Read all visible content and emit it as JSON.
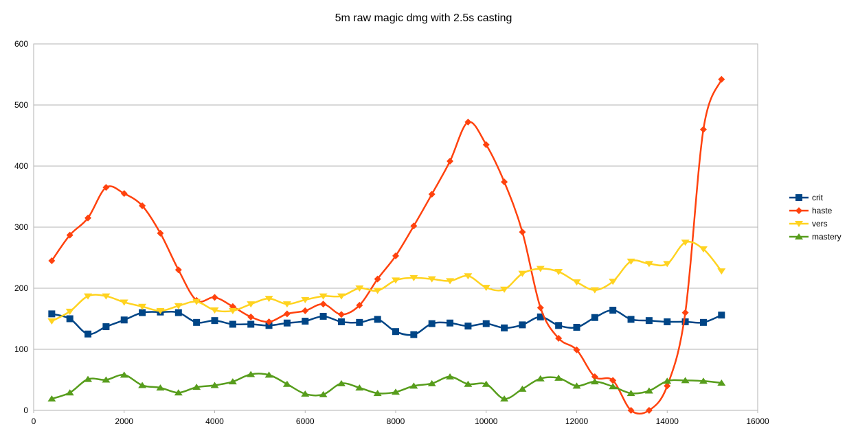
{
  "chart_data": {
    "type": "line",
    "title": "5m raw magic dmg with 2.5s casting",
    "xlabel": "",
    "ylabel": "",
    "xlim": [
      0,
      16000
    ],
    "ylim": [
      0,
      600
    ],
    "xticks": [
      "0",
      "2000",
      "4000",
      "6000",
      "8000",
      "10000",
      "12000",
      "14000",
      "16000"
    ],
    "yticks": [
      "0",
      "100",
      "200",
      "300",
      "400",
      "500",
      "600"
    ],
    "grid": "horizontal",
    "legend": "right",
    "x": [
      400,
      800,
      1200,
      1600,
      2000,
      2400,
      2800,
      3200,
      3600,
      4000,
      4400,
      4800,
      5200,
      5600,
      6000,
      6400,
      6800,
      7200,
      7600,
      8000,
      8400,
      8800,
      9200,
      9600,
      10000,
      10400,
      10800,
      11200,
      11600,
      12000,
      12400,
      12800,
      13200,
      13600,
      14000,
      14400,
      14800,
      15200
    ],
    "series": [
      {
        "name": "crit",
        "color": "#004586",
        "marker": "square",
        "values": [
          158,
          150,
          125,
          137,
          148,
          160,
          161,
          160,
          144,
          147,
          141,
          141,
          139,
          143,
          146,
          154,
          145,
          144,
          149,
          129,
          124,
          142,
          143,
          138,
          142,
          135,
          140,
          153,
          139,
          136,
          152,
          164,
          149,
          147,
          145,
          145,
          144,
          156
        ]
      },
      {
        "name": "haste",
        "color": "#ff420e",
        "marker": "diamond",
        "values": [
          245,
          287,
          315,
          365,
          355,
          335,
          290,
          230,
          180,
          185,
          170,
          153,
          145,
          158,
          163,
          174,
          157,
          172,
          215,
          253,
          302,
          354,
          408,
          472,
          435,
          374,
          292,
          168,
          118,
          99,
          55,
          49,
          0,
          0,
          40,
          160,
          460,
          542
        ]
      },
      {
        "name": "vers",
        "color": "#ffd320",
        "marker": "triangle-down",
        "values": [
          146,
          162,
          187,
          187,
          177,
          170,
          163,
          171,
          178,
          164,
          163,
          174,
          183,
          174,
          181,
          187,
          187,
          200,
          196,
          213,
          217,
          215,
          212,
          220,
          201,
          198,
          224,
          232,
          227,
          210,
          197,
          211,
          244,
          240,
          240,
          275,
          264,
          228
        ]
      },
      {
        "name": "mastery",
        "color": "#579d1c",
        "marker": "triangle-up",
        "values": [
          19,
          29,
          51,
          50,
          58,
          41,
          37,
          29,
          38,
          41,
          47,
          59,
          58,
          43,
          27,
          26,
          44,
          37,
          28,
          30,
          40,
          44,
          55,
          43,
          43,
          19,
          35,
          52,
          53,
          40,
          47,
          39,
          28,
          32,
          48,
          49,
          48,
          45
        ]
      }
    ]
  }
}
